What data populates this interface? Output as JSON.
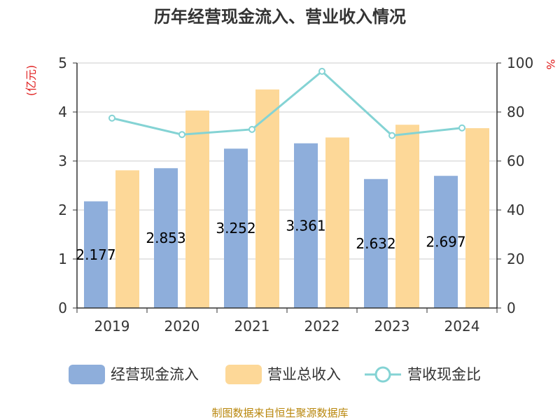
{
  "chart_data": {
    "type": "bar",
    "title": "历年经营现金流入、营业收入情况",
    "categories": [
      "2019",
      "2020",
      "2021",
      "2022",
      "2023",
      "2024"
    ],
    "series": [
      {
        "name": "经营现金流入",
        "kind": "bar",
        "axis": "left",
        "color": "#8eaedb",
        "values": [
          2.177,
          2.853,
          3.252,
          3.361,
          2.632,
          2.697
        ]
      },
      {
        "name": "营业总收入",
        "kind": "bar",
        "axis": "left",
        "color": "#fdd898",
        "values": [
          2.81,
          4.03,
          4.46,
          3.48,
          3.74,
          3.67
        ]
      },
      {
        "name": "营收现金比",
        "kind": "line",
        "axis": "right",
        "color": "#84d3d4",
        "values": [
          77.5,
          70.8,
          72.9,
          96.6,
          70.4,
          73.5
        ]
      }
    ],
    "data_labels": [
      "2.177",
      "2.853",
      "3.252",
      "3.361",
      "2.632",
      "2.697"
    ],
    "y_left": {
      "unit": "(亿元)",
      "ylim": [
        0,
        5
      ],
      "ticks": [
        "0",
        "1",
        "2",
        "3",
        "4",
        "5"
      ]
    },
    "y_right": {
      "unit": "%",
      "ylim": [
        0,
        100
      ],
      "ticks": [
        "0",
        "20",
        "40",
        "60",
        "80",
        "100"
      ]
    },
    "grid": true,
    "legend_position": "bottom"
  },
  "source_note": "制图数据来自恒生聚源数据库"
}
